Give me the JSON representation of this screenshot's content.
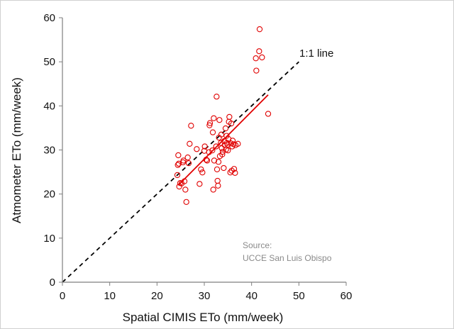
{
  "chart_data": {
    "type": "scatter",
    "xlabel": "Spatial CIMIS ETo (mm/week)",
    "ylabel": "Atmometer ETo (mm/week)",
    "xlim": [
      0,
      60
    ],
    "ylim": [
      0,
      60
    ],
    "x_ticks": [
      "0",
      "10",
      "20",
      "30",
      "40",
      "50",
      "60"
    ],
    "y_ticks": [
      "0",
      "10",
      "20",
      "30",
      "40",
      "50",
      "60"
    ],
    "grid": false,
    "marker_color": "#e00000",
    "fit_line_color": "#e00000",
    "ref_line_color": "#000000",
    "ref_line_label": "1:1 line",
    "ref_line": {
      "x": [
        0,
        50
      ],
      "y": [
        0,
        50
      ]
    },
    "fit_line": {
      "x": [
        24.5,
        43.5
      ],
      "y": [
        22.0,
        42.5
      ]
    },
    "source_note": [
      "Source:",
      "UCCE San Luis Obispo"
    ],
    "points": [
      [
        24.3,
        24.3
      ],
      [
        24.4,
        26.6
      ],
      [
        24.5,
        28.8
      ],
      [
        24.6,
        26.9
      ],
      [
        24.7,
        21.7
      ],
      [
        24.9,
        22.5
      ],
      [
        25.2,
        22.4
      ],
      [
        25.5,
        27.2
      ],
      [
        25.6,
        27.6
      ],
      [
        25.8,
        22.9
      ],
      [
        26.0,
        21.0
      ],
      [
        26.2,
        18.2
      ],
      [
        26.5,
        28.3
      ],
      [
        26.7,
        27.0
      ],
      [
        26.9,
        31.4
      ],
      [
        27.2,
        35.5
      ],
      [
        28.4,
        30.2
      ],
      [
        29.0,
        22.3
      ],
      [
        29.3,
        25.6
      ],
      [
        29.6,
        24.9
      ],
      [
        30.0,
        29.8
      ],
      [
        30.1,
        30.8
      ],
      [
        30.4,
        27.8
      ],
      [
        30.6,
        27.6
      ],
      [
        31.0,
        29.5
      ],
      [
        31.1,
        35.6
      ],
      [
        31.2,
        36.1
      ],
      [
        31.7,
        29.9
      ],
      [
        31.8,
        34.0
      ],
      [
        31.9,
        21.0
      ],
      [
        32.0,
        37.2
      ],
      [
        32.1,
        27.6
      ],
      [
        32.5,
        30.8
      ],
      [
        32.6,
        42.1
      ],
      [
        32.7,
        25.6
      ],
      [
        32.8,
        23.0
      ],
      [
        32.9,
        21.9
      ],
      [
        33.0,
        27.3
      ],
      [
        33.1,
        32.8
      ],
      [
        33.2,
        36.8
      ],
      [
        33.3,
        28.6
      ],
      [
        33.5,
        31.6
      ],
      [
        33.6,
        33.5
      ],
      [
        33.7,
        30.4
      ],
      [
        33.9,
        29.6
      ],
      [
        34.1,
        25.9
      ],
      [
        34.2,
        32.0
      ],
      [
        34.3,
        31.1
      ],
      [
        34.5,
        34.9
      ],
      [
        34.6,
        30.1
      ],
      [
        34.7,
        33.2
      ],
      [
        34.9,
        31.2
      ],
      [
        35.0,
        29.9
      ],
      [
        35.1,
        32.5
      ],
      [
        35.2,
        36.4
      ],
      [
        35.3,
        37.5
      ],
      [
        35.5,
        24.9
      ],
      [
        35.6,
        31.5
      ],
      [
        35.7,
        36.0
      ],
      [
        35.8,
        25.3
      ],
      [
        35.9,
        30.8
      ],
      [
        36.0,
        32.1
      ],
      [
        36.2,
        31.3
      ],
      [
        36.3,
        25.7
      ],
      [
        36.5,
        24.8
      ],
      [
        36.6,
        31.1
      ],
      [
        37.1,
        31.4
      ],
      [
        40.9,
        50.8
      ],
      [
        41.0,
        48.0
      ],
      [
        41.6,
        52.4
      ],
      [
        41.7,
        57.4
      ],
      [
        42.2,
        51.0
      ],
      [
        43.5,
        38.2
      ],
      [
        34.8,
        31.6
      ],
      [
        33.8,
        29.0
      ]
    ]
  }
}
